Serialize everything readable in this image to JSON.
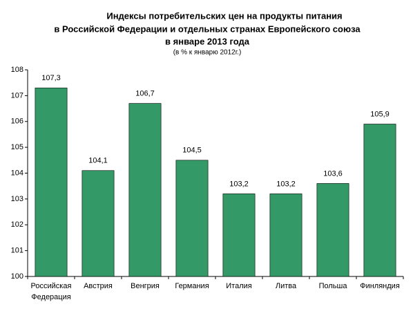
{
  "chart_data": {
    "type": "bar",
    "title": [
      "Индексы потребительских цен на продукты питания",
      "в Российской Федерации и отдельных странах Европейского союза",
      "в январе 2013 года"
    ],
    "subtitle": "(в % к январю 2012г.)",
    "categories": [
      "Российская Федерация",
      "Австрия",
      "Венгрия",
      "Германия",
      "Италия",
      "Литва",
      "Польша",
      "Финляндия"
    ],
    "values": [
      107.3,
      104.1,
      106.7,
      104.5,
      103.2,
      103.2,
      103.6,
      105.9
    ],
    "value_labels": [
      "107,3",
      "104,1",
      "106,7",
      "104,5",
      "103,2",
      "103,2",
      "103,6",
      "105,9"
    ],
    "color": "#339966",
    "ylim": [
      100,
      108
    ],
    "yticks": [
      100,
      101,
      102,
      103,
      104,
      105,
      106,
      107,
      108
    ],
    "grid": false
  }
}
